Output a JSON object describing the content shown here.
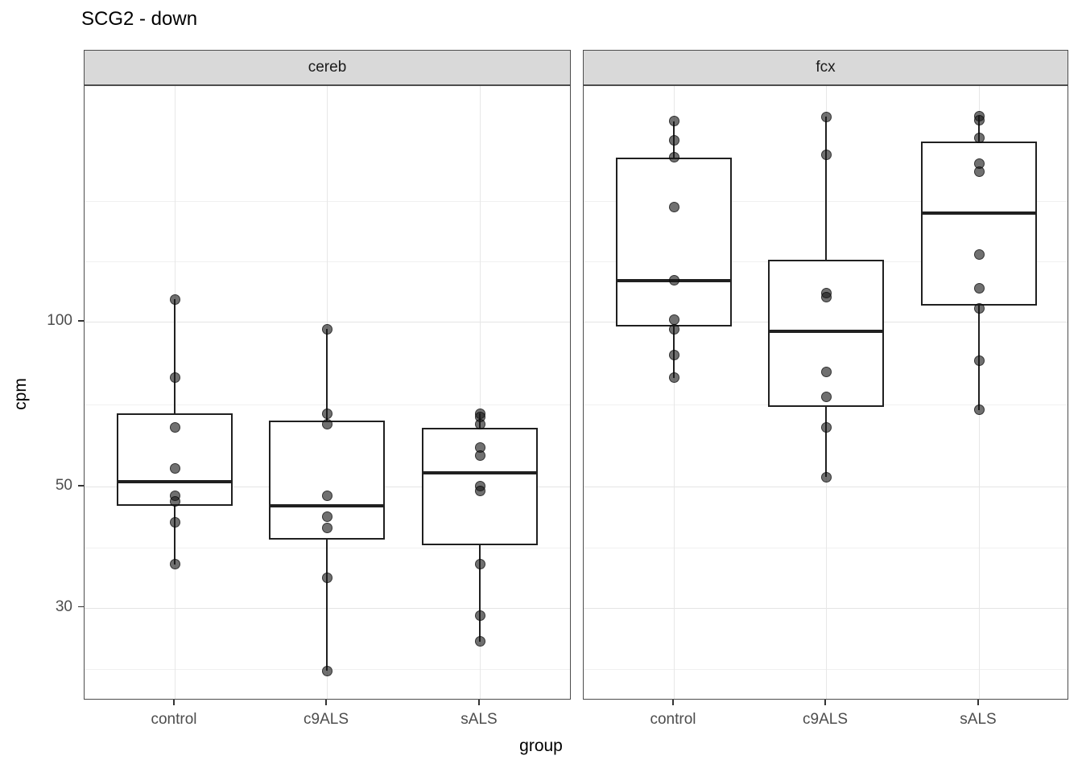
{
  "chart_data": {
    "type": "boxplot",
    "title": "SCG2 - down",
    "xlabel": "group",
    "ylabel": "cpm",
    "y_scale": "log10",
    "ylim": [
      20.3,
      270
    ],
    "grid": "on",
    "y_ticks": [
      {
        "label": "100",
        "value": 100
      },
      {
        "label": "50",
        "value": 50
      },
      {
        "label": "30",
        "value": 30
      }
    ],
    "y_minor_gridlines": [
      166.6,
      129.1,
      70.7,
      38.7,
      23.2
    ],
    "categories": [
      "control",
      "c9ALS",
      "sALS"
    ],
    "facets": [
      {
        "label": "cereb",
        "groups": [
          {
            "label": "control",
            "stats": {
              "whisker_low": 36,
              "q1": 46,
              "median": 51,
              "q3": 68,
              "whisker_high": 110
            },
            "points": [
              110,
              79,
              64,
              54,
              48,
              47,
              43,
              36
            ]
          },
          {
            "label": "c9ALS",
            "stats": {
              "whisker_low": 23,
              "q1": 40,
              "median": 46,
              "q3": 66,
              "whisker_high": 97
            },
            "points": [
              97,
              68,
              65,
              48,
              44,
              42,
              34,
              23
            ]
          },
          {
            "label": "sALS",
            "stats": {
              "whisker_low": 26,
              "q1": 39,
              "median": 53,
              "q3": 64,
              "whisker_high": 68
            },
            "points": [
              68,
              67,
              65,
              59,
              57,
              50,
              49,
              36,
              29,
              26
            ]
          }
        ]
      },
      {
        "label": "fcx",
        "groups": [
          {
            "label": "control",
            "stats": {
              "whisker_low": 79,
              "q1": 98,
              "median": 119,
              "q3": 200,
              "whisker_high": 233
            },
            "points": [
              233,
              215,
              200,
              162,
              119,
              101,
              97,
              87,
              79
            ]
          },
          {
            "label": "c9ALS",
            "stats": {
              "whisker_low": 52,
              "q1": 70,
              "median": 96,
              "q3": 130,
              "whisker_high": 237
            },
            "points": [
              237,
              202,
              113,
              111,
              81,
              73,
              64,
              52
            ]
          },
          {
            "label": "sALS",
            "stats": {
              "whisker_low": 69,
              "q1": 107,
              "median": 158,
              "q3": 214,
              "whisker_high": 238
            },
            "points": [
              238,
              234,
              217,
              195,
              188,
              133,
              115,
              106,
              85,
              69
            ]
          }
        ]
      }
    ],
    "colors": {
      "strip_background": "#d9d9d9",
      "panel_border": "#4d4d4d",
      "box_line": "#202020",
      "point": "rgba(25,25,25,0.62)",
      "grid_major": "#e4e4e4",
      "grid_minor": "#f0f0f0",
      "tick_label": "#4d4d4d",
      "title": "#000000"
    }
  }
}
